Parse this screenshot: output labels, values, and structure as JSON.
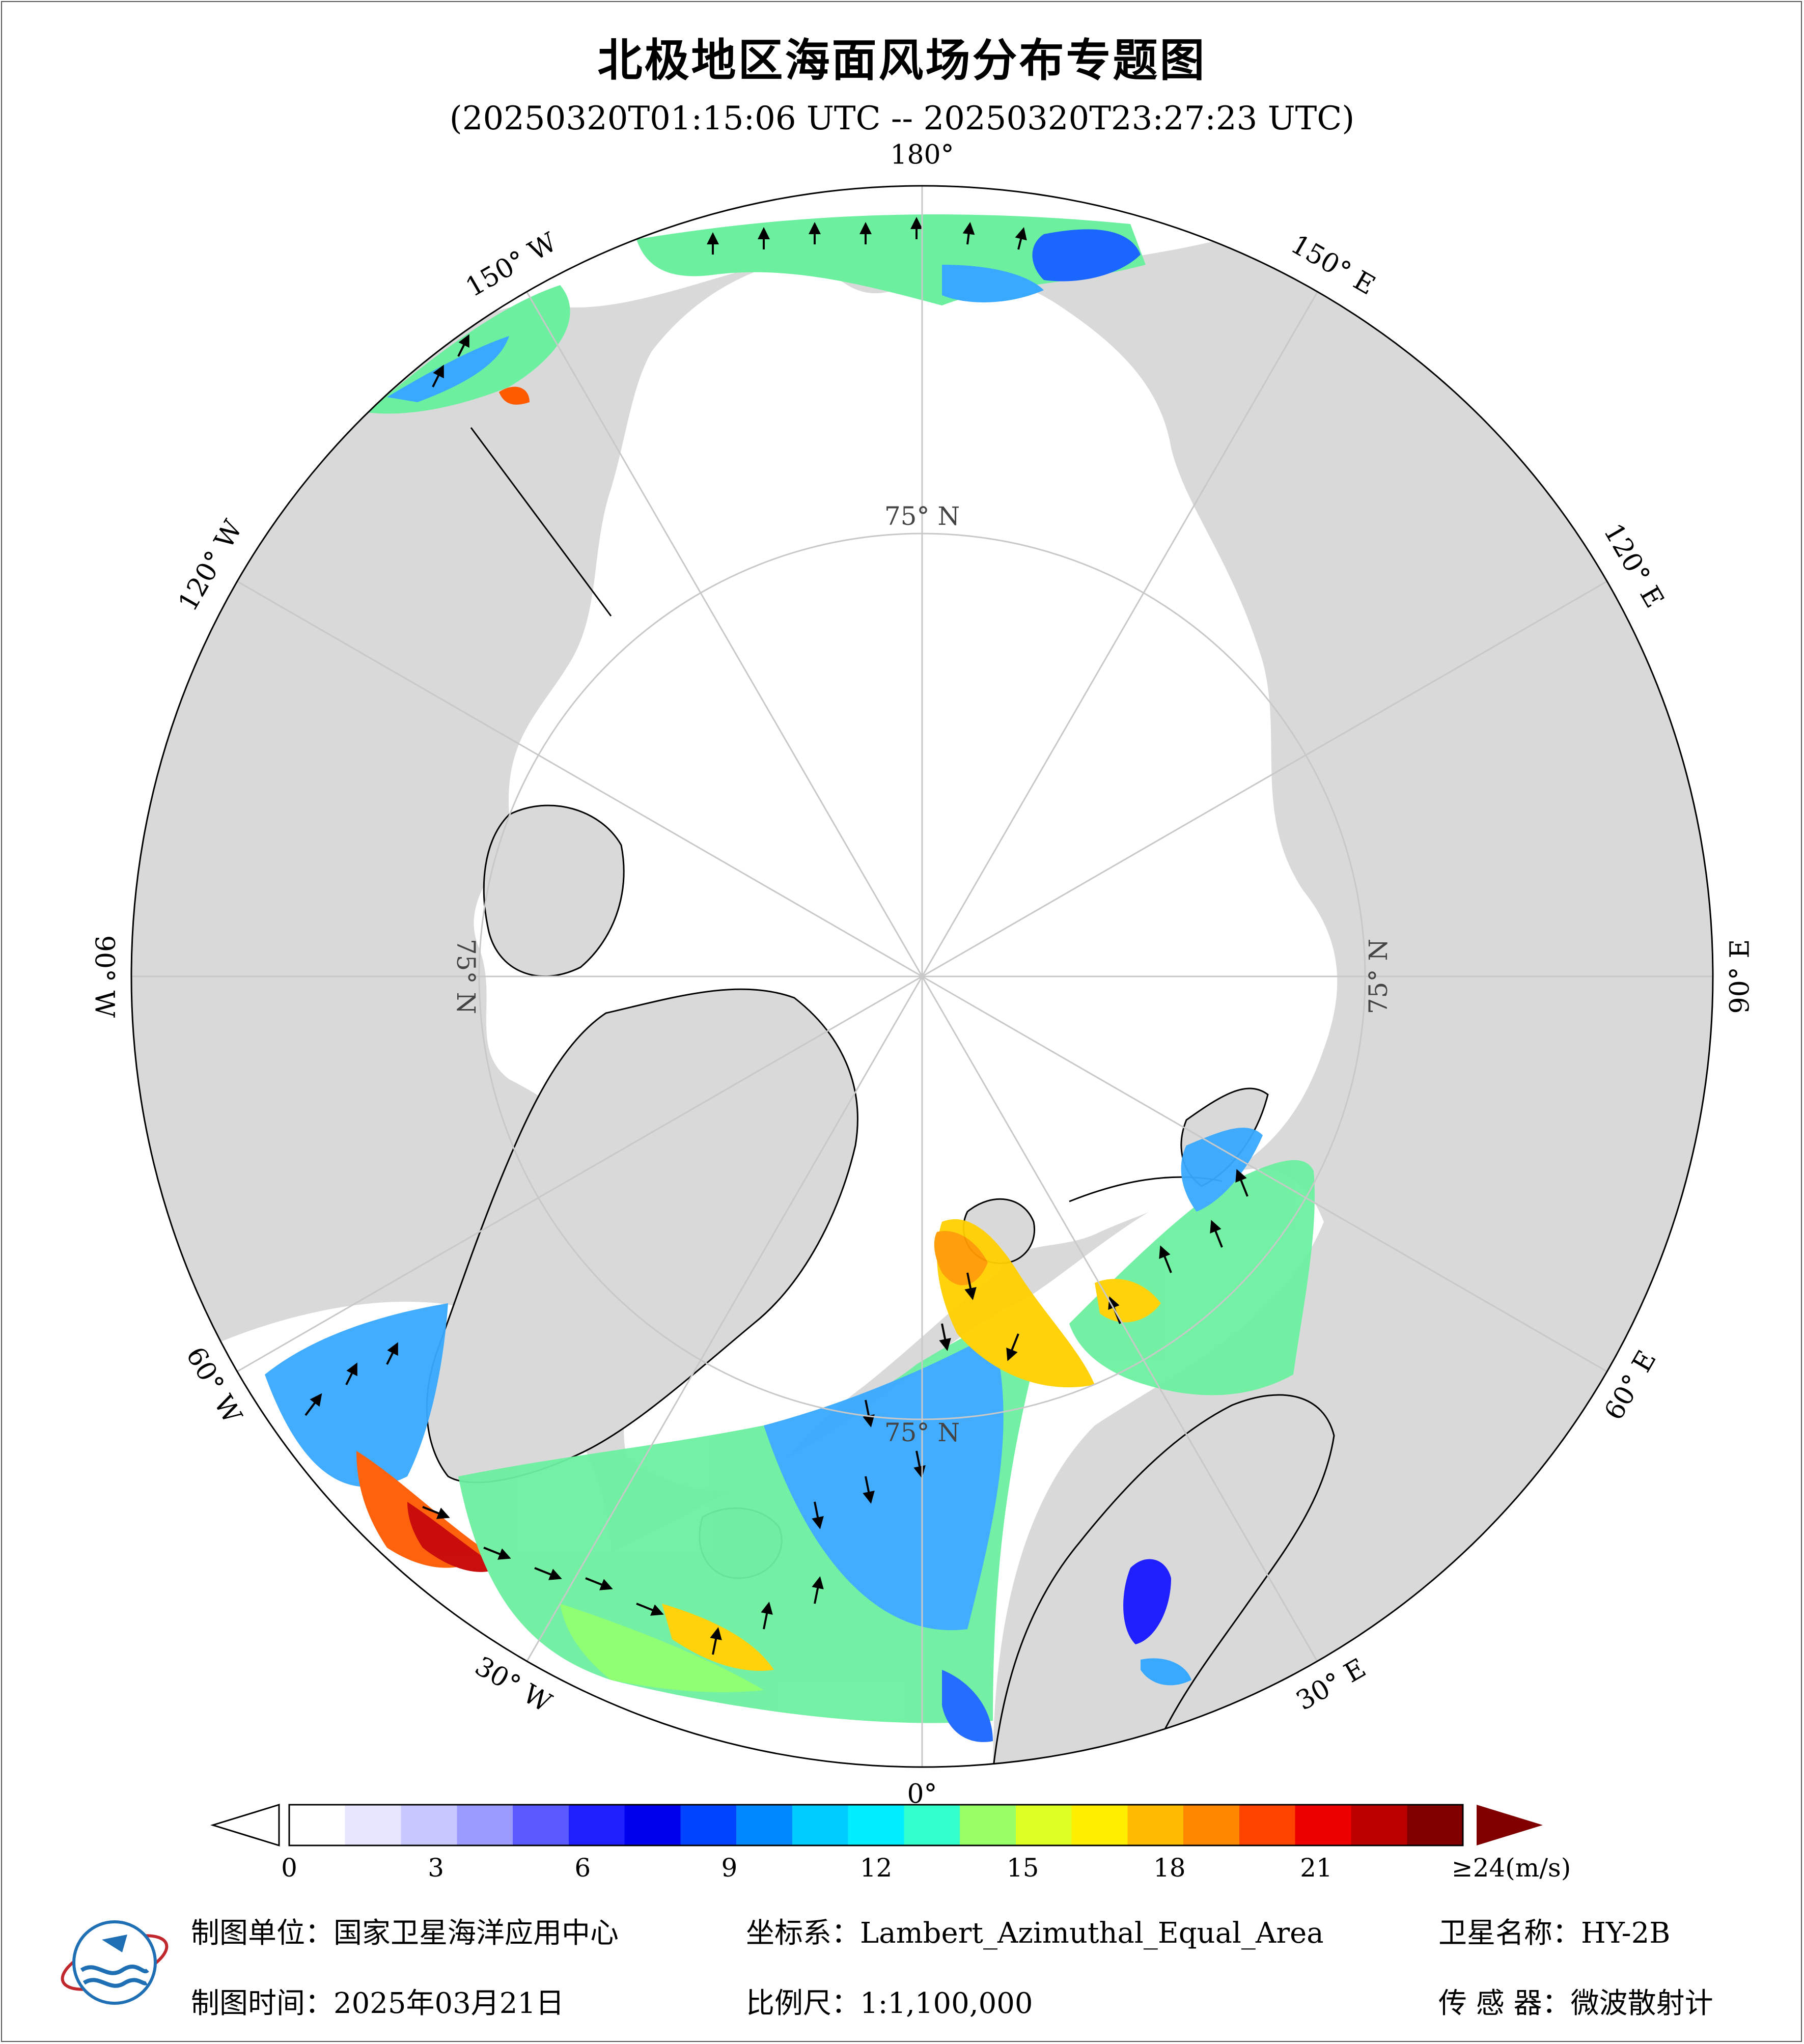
{
  "title": "北极地区海面风场分布专题图",
  "subtitle": "(20250320T01:15:06 UTC -- 20250320T23:27:23 UTC)",
  "map": {
    "projection_note": "Lambert_Azimuthal_Equal_Area",
    "longitude_labels": [
      {
        "text": "180°",
        "lon": 180
      },
      {
        "text": "150° E",
        "lon": 150
      },
      {
        "text": "120° E",
        "lon": 120
      },
      {
        "text": "90° E",
        "lon": 90
      },
      {
        "text": "60° E",
        "lon": 60
      },
      {
        "text": "30° E",
        "lon": 30
      },
      {
        "text": "0°",
        "lon": 0
      },
      {
        "text": "30° W",
        "lon": -30
      },
      {
        "text": "60° W",
        "lon": -60
      },
      {
        "text": "90° W",
        "lon": -90
      },
      {
        "text": "120° W",
        "lon": -120
      },
      {
        "text": "150° W",
        "lon": -150
      }
    ],
    "latitude_labels": [
      {
        "text": "75° N",
        "lat": 75,
        "lon": 180
      },
      {
        "text": "75° N",
        "lat": 75,
        "lon": 90
      },
      {
        "text": "75° N",
        "lat": 75,
        "lon": 0
      },
      {
        "text": "75° N",
        "lat": 75,
        "lon": -90
      }
    ],
    "colors": {
      "land": "#d9d9d9",
      "ocean": "#ffffff",
      "graticule": "#c8c8c8",
      "coast": "#000000"
    }
  },
  "colorbar": {
    "ticks": [
      "0",
      "3",
      "6",
      "9",
      "12",
      "15",
      "18",
      "21",
      "≥24(m/s)"
    ],
    "tick_values": [
      0,
      3,
      6,
      9,
      12,
      15,
      18,
      21,
      24
    ],
    "colors": [
      "#ffffff",
      "#e6e6ff",
      "#c8c8ff",
      "#9a9aff",
      "#5a5aff",
      "#1f1fff",
      "#0000ee",
      "#0044ff",
      "#0088ff",
      "#00ccff",
      "#00eeff",
      "#33ffcc",
      "#99ff66",
      "#ddff22",
      "#ffee00",
      "#ffbb00",
      "#ff8800",
      "#ff4400",
      "#ee0000",
      "#bb0000",
      "#800000"
    ],
    "under_color": "#ffffff",
    "over_color": "#800000"
  },
  "footer": {
    "unit_label": "制图单位：",
    "unit_value": "国家卫星海洋应用中心",
    "coord_label": "坐标系：",
    "coord_value": "Lambert_Azimuthal_Equal_Area",
    "sat_label": "卫星名称：",
    "sat_value": "HY-2B",
    "time_label": "制图时间：",
    "time_value": "2025年03月21日",
    "scale_label": "比例尺：",
    "scale_value": "1:1,100,000",
    "sensor_label": "传 感 器：",
    "sensor_value": "微波散射计"
  }
}
